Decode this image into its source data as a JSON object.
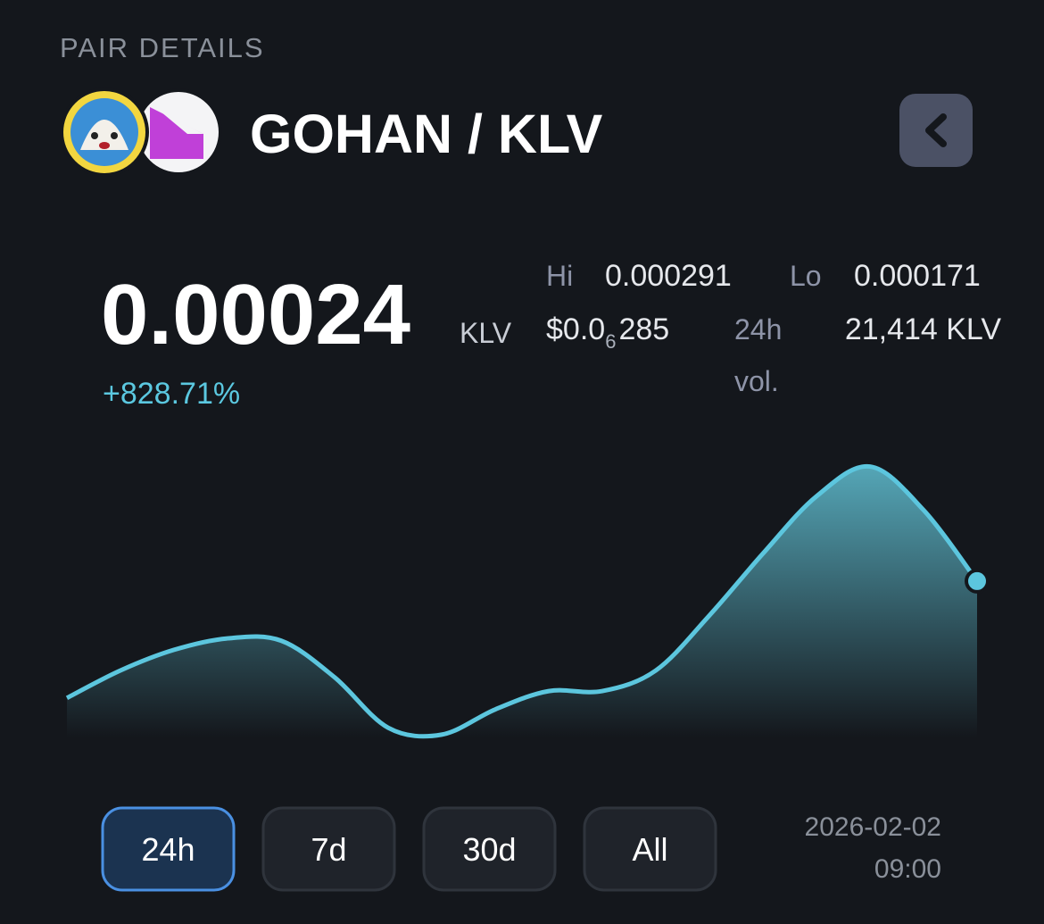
{
  "header": {
    "title": "PAIR DETAILS",
    "pair": "GOHAN / KLV"
  },
  "price": {
    "value": "0.00024",
    "unit": "KLV",
    "change": "+828.71%"
  },
  "stats": {
    "hi_label": "Hi",
    "hi": "0.000291",
    "lo_label": "Lo",
    "lo": "0.000171",
    "usd_prefix": "$0.0",
    "usd_zeros": "6",
    "usd_digits": "285",
    "volume_label": [
      "24h",
      "vol."
    ],
    "volume": "21,414 KLV"
  },
  "chart_data": {
    "type": "area",
    "color": "#5cc6de",
    "values": [
      0.000189,
      0.000201,
      0.00021,
      0.000215,
      0.000214,
      0.000198,
      0.000176,
      0.000173,
      0.000184,
      0.000192,
      0.000192,
      0.000201,
      0.000225,
      0.000252,
      0.000277,
      0.00029,
      0.000271,
      0.00024
    ],
    "ylim": [
      0.000171,
      0.000291
    ]
  },
  "ranges": {
    "buttons": [
      "24h",
      "7d",
      "30d",
      "All"
    ],
    "active": 0
  },
  "timestamp": {
    "date": "2026-02-02",
    "time": "09:00"
  }
}
